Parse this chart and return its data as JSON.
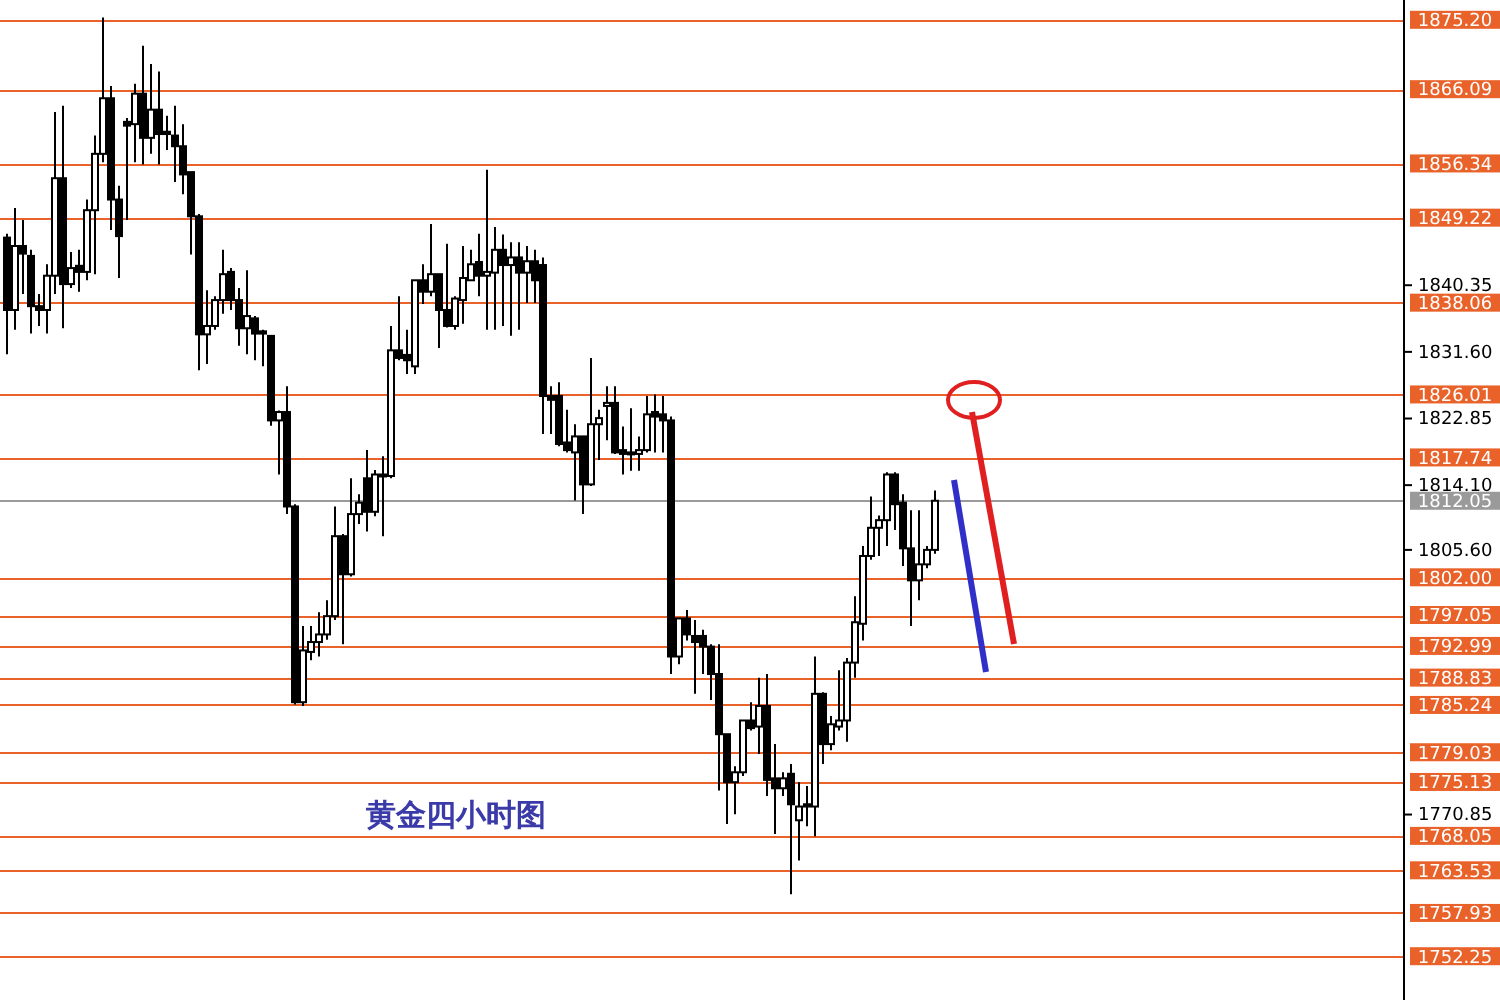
{
  "chart_data": {
    "type": "candlestick",
    "categories": [
      null,
      null,
      null,
      null,
      null,
      null,
      null,
      null,
      null,
      null,
      null,
      null,
      null,
      null,
      null,
      null,
      null,
      null,
      null,
      null,
      null,
      null,
      null,
      null,
      null,
      null,
      null,
      null,
      null,
      null,
      null,
      null,
      null,
      null,
      null,
      null,
      null,
      null,
      null,
      null,
      null,
      null,
      null,
      null,
      null,
      null,
      null,
      null,
      null,
      null,
      null,
      null,
      null,
      null,
      null,
      null,
      null,
      null,
      null,
      null,
      null,
      null,
      null,
      null,
      null,
      null,
      null,
      null,
      null,
      null,
      null,
      null,
      null,
      null,
      null,
      null,
      null,
      null,
      null,
      null,
      null,
      null,
      null,
      null,
      null,
      null,
      null,
      null,
      null,
      null,
      null,
      null,
      null,
      null,
      null,
      null,
      null,
      null,
      null,
      null,
      null,
      null,
      null,
      null,
      null,
      null,
      null,
      null,
      null,
      null,
      null,
      null,
      null,
      null,
      null,
      null,
      null,
      null,
      null,
      null,
      null,
      null,
      null,
      null,
      null,
      null,
      null,
      null,
      null,
      null,
      null,
      null,
      null,
      null,
      null,
      null,
      null,
      null,
      null,
      null,
      null,
      null,
      null,
      null,
      null,
      null,
      null,
      null,
      null,
      null,
      null,
      null,
      null,
      null,
      null,
      null,
      null,
      null,
      null,
      null,
      null,
      null,
      null,
      null,
      null,
      null,
      null,
      null,
      null,
      null,
      null,
      null,
      null,
      null,
      null
    ],
    "ohlc": [
      [
        1846.6,
        1847.1,
        1831.3,
        1837.1
      ],
      [
        1837.1,
        1850.5,
        1834.5,
        1845.5
      ],
      [
        1845.5,
        1848.9,
        1839.2,
        1844.5
      ],
      [
        1844.2,
        1845,
        1834,
        1837.6
      ],
      [
        1837.6,
        1839.2,
        1835,
        1837.1
      ],
      [
        1837.1,
        1843.1,
        1834,
        1841.6
      ],
      [
        1841.6,
        1863.1,
        1839.2,
        1854.4
      ],
      [
        1854.4,
        1863.9,
        1834.7,
        1840.5
      ],
      [
        1840.5,
        1844.7,
        1840,
        1842.6
      ],
      [
        1842.9,
        1845,
        1839.5,
        1842.1
      ],
      [
        1842.1,
        1851.6,
        1841,
        1850.2
      ],
      [
        1850.2,
        1860,
        1841.8,
        1857.6
      ],
      [
        1857.6,
        1875.5,
        1856.5,
        1864.9
      ],
      [
        1864.9,
        1866.5,
        1847.6,
        1851.6
      ],
      [
        1851.6,
        1853.4,
        1841.3,
        1846.8
      ],
      [
        1861.8,
        1862.3,
        1848.9,
        1861.3
      ],
      [
        1861.5,
        1866.8,
        1856.5,
        1865.5
      ],
      [
        1865.5,
        1871.8,
        1856.2,
        1859.7
      ],
      [
        1859.7,
        1869.4,
        1857.6,
        1863.4
      ],
      [
        1863.4,
        1868.4,
        1856.2,
        1860.2
      ],
      [
        1860.5,
        1862.6,
        1858.1,
        1860.2
      ],
      [
        1860,
        1863.9,
        1853.9,
        1858.6
      ],
      [
        1858.6,
        1861.5,
        1852.3,
        1854.9
      ],
      [
        1855.2,
        1855.2,
        1844.4,
        1849.4
      ],
      [
        1849.4,
        1849.7,
        1829.2,
        1833.9
      ],
      [
        1833.9,
        1839.7,
        1830,
        1835
      ],
      [
        1835,
        1838.9,
        1834.5,
        1838.4
      ],
      [
        1838.4,
        1845,
        1836.6,
        1841.8
      ],
      [
        1842.1,
        1842.6,
        1837.1,
        1838.4
      ],
      [
        1838.4,
        1840,
        1832.4,
        1834.7
      ],
      [
        1834.7,
        1842.3,
        1831.3,
        1836.3
      ],
      [
        1836,
        1836.3,
        1830.5,
        1834
      ],
      [
        1834.3,
        1834.5,
        1829.7,
        1834
      ],
      [
        1833.7,
        1833.7,
        1821.9,
        1822.6
      ],
      [
        1822.6,
        1823.9,
        1815.5,
        1823.7
      ],
      [
        1823.7,
        1827.1,
        1810.3,
        1811.3
      ],
      [
        1811.3,
        1811.6,
        1785.3,
        1785.6
      ],
      [
        1785.6,
        1795.6,
        1785.1,
        1792.4
      ],
      [
        1792.2,
        1795.6,
        1791.1,
        1793.5
      ],
      [
        1793.5,
        1797.4,
        1791.6,
        1794.5
      ],
      [
        1794.5,
        1799,
        1793.8,
        1796.9
      ],
      [
        1796.9,
        1811.3,
        1796.4,
        1807.4
      ],
      [
        1807.4,
        1807.7,
        1793.2,
        1802.4
      ],
      [
        1802.4,
        1815,
        1802.1,
        1810.3
      ],
      [
        1810.3,
        1812.9,
        1809,
        1811.8
      ],
      [
        1815,
        1818.7,
        1808,
        1810.6
      ],
      [
        1810.6,
        1816.1,
        1810,
        1815.5
      ],
      [
        1815.3,
        1817.9,
        1807.4,
        1815.5
      ],
      [
        1815.3,
        1835,
        1815,
        1831.8
      ],
      [
        1831.8,
        1838.9,
        1830.5,
        1830.8
      ],
      [
        1831.2,
        1834.5,
        1828.7,
        1830.5
      ],
      [
        1829.7,
        1841,
        1828.7,
        1841
      ],
      [
        1841,
        1843.1,
        1837.9,
        1839.5
      ],
      [
        1839.5,
        1848.4,
        1838.9,
        1841.8
      ],
      [
        1841.8,
        1841.8,
        1832.1,
        1837.1
      ],
      [
        1837.1,
        1845.8,
        1834.8,
        1835
      ],
      [
        1835,
        1838.9,
        1834.5,
        1838.6
      ],
      [
        1838.4,
        1845.5,
        1835.3,
        1841.3
      ],
      [
        1841,
        1845,
        1841,
        1843.1
      ],
      [
        1843.4,
        1847.1,
        1838.9,
        1841.6
      ],
      [
        1841.6,
        1855.5,
        1834.5,
        1842.1
      ],
      [
        1842,
        1848,
        1834.5,
        1845
      ],
      [
        1845,
        1847,
        1835,
        1843
      ],
      [
        1843,
        1846,
        1833.7,
        1844
      ],
      [
        1844,
        1846,
        1834.5,
        1842
      ],
      [
        1842,
        1845.5,
        1838,
        1843.5
      ],
      [
        1843.5,
        1845,
        1838,
        1841
      ],
      [
        1843,
        1844,
        1820.8,
        1825.8
      ],
      [
        1825.8,
        1827.1,
        1820.8,
        1825.3
      ],
      [
        1825.8,
        1827.6,
        1819.2,
        1819.5
      ],
      [
        1819.7,
        1824,
        1818.4,
        1818.7
      ],
      [
        1818.4,
        1822.1,
        1812.1,
        1820.5
      ],
      [
        1820.5,
        1820.5,
        1810.3,
        1814.2
      ],
      [
        1814.2,
        1830.8,
        1814,
        1822.1
      ],
      [
        1822.1,
        1824,
        1817.4,
        1822.9
      ],
      [
        1824.5,
        1827.1,
        1820,
        1824.9
      ],
      [
        1824.9,
        1827.1,
        1818.2,
        1818.4
      ],
      [
        1818.7,
        1821.8,
        1815.5,
        1818.2
      ],
      [
        1818.2,
        1824.2,
        1816,
        1818.4
      ],
      [
        1818.2,
        1820.5,
        1816,
        1818.7
      ],
      [
        1818.7,
        1825.8,
        1818.4,
        1823.4
      ],
      [
        1823.7,
        1826,
        1818.4,
        1823.1
      ],
      [
        1823.4,
        1825.8,
        1818.4,
        1822.6
      ],
      [
        1822.6,
        1823.1,
        1789.3,
        1791.6
      ],
      [
        1791.6,
        1796.6,
        1790.6,
        1796.6
      ],
      [
        1796.6,
        1797.7,
        1793.7,
        1794.5
      ],
      [
        1794.3,
        1796.4,
        1786.7,
        1793.5
      ],
      [
        1794.3,
        1795.1,
        1789.3,
        1792.9
      ],
      [
        1792.9,
        1793.2,
        1785.9,
        1789.3
      ],
      [
        1789.3,
        1793.2,
        1774,
        1781.4
      ],
      [
        1781.4,
        1781.4,
        1769.6,
        1775.1
      ],
      [
        1775.1,
        1777.2,
        1770.9,
        1776.4
      ],
      [
        1776.4,
        1783.2,
        1775.9,
        1783.2
      ],
      [
        1783.2,
        1785.6,
        1781.9,
        1782.2
      ],
      [
        1782.4,
        1788.8,
        1778.8,
        1785.1
      ],
      [
        1785.1,
        1789.3,
        1773.3,
        1775.4
      ],
      [
        1775.6,
        1780.1,
        1768.3,
        1774.3
      ],
      [
        1774.3,
        1776.4,
        1773.3,
        1775.6
      ],
      [
        1776.2,
        1777.5,
        1760.4,
        1772.2
      ],
      [
        1770.1,
        1775.1,
        1764.8,
        1771.9
      ],
      [
        1772.2,
        1774.6,
        1769.3,
        1771.9
      ],
      [
        1771.9,
        1791.6,
        1768,
        1786.7
      ],
      [
        1786.7,
        1786.9,
        1777.5,
        1780.1
      ],
      [
        1780.1,
        1783.8,
        1779.3,
        1782.7
      ],
      [
        1782.4,
        1789.8,
        1781.9,
        1783.2
      ],
      [
        1783.2,
        1791.4,
        1780.4,
        1790.8
      ],
      [
        1790.8,
        1799.5,
        1788.8,
        1796.1
      ],
      [
        1795.9,
        1806.1,
        1793.7,
        1804.8
      ],
      [
        1804.8,
        1812.6,
        1804.3,
        1808.5
      ],
      [
        1808.5,
        1810.1,
        1804.8,
        1809.5
      ],
      [
        1809.5,
        1815.8,
        1806.1,
        1815.5
      ],
      [
        1815.5,
        1815.8,
        1808.2,
        1811.6
      ],
      [
        1811.8,
        1812.9,
        1803.5,
        1805.8
      ],
      [
        1805.8,
        1810.8,
        1795.6,
        1801.6
      ],
      [
        1801.6,
        1810.8,
        1799,
        1803.7
      ],
      [
        1803.7,
        1806.1,
        1803.2,
        1805.6
      ],
      [
        1805.6,
        1813.4,
        1805.1,
        1812.05
      ],
      null,
      null,
      null,
      null,
      null,
      null,
      null,
      null,
      null,
      null,
      null,
      null,
      null,
      null,
      null,
      null,
      null,
      null,
      null,
      null,
      null,
      null,
      null,
      null,
      null,
      null,
      null,
      null,
      null,
      null,
      null,
      null,
      null,
      null,
      null,
      null,
      null,
      null,
      null,
      null,
      null,
      null,
      null,
      null,
      null,
      null,
      null,
      null,
      null,
      null,
      null,
      null,
      null,
      null,
      null,
      null,
      null,
      null
    ],
    "ylim": [
      1746.5,
      1877.8
    ],
    "yticks": [
      {
        "value": 1840.35,
        "label": "1840.35"
      },
      {
        "value": 1831.6,
        "label": "1831.60"
      },
      {
        "value": 1822.85,
        "label": "1822.85"
      },
      {
        "value": 1814.1,
        "label": "1814.10"
      },
      {
        "value": 1805.6,
        "label": "1805.60"
      },
      {
        "value": 1770.85,
        "label": "1770.85"
      }
    ],
    "tick_labels": "y",
    "ref_lines": [
      {
        "axis": "y",
        "value": 1875.2,
        "label": "1875.20",
        "color": "#e8622a"
      },
      {
        "axis": "y",
        "value": 1866.09,
        "label": "1866.09",
        "color": "#e8622a"
      },
      {
        "axis": "y",
        "value": 1856.34,
        "label": "1856.34",
        "color": "#e8622a"
      },
      {
        "axis": "y",
        "value": 1849.22,
        "label": "1849.22",
        "color": "#e8622a"
      },
      {
        "axis": "y",
        "value": 1838.06,
        "label": "1838.06",
        "color": "#e8622a"
      },
      {
        "axis": "y",
        "value": 1826.01,
        "label": "1826.01",
        "color": "#e8622a"
      },
      {
        "axis": "y",
        "value": 1817.74,
        "label": "1817.74",
        "color": "#e8622a"
      },
      {
        "axis": "y",
        "value": 1812.05,
        "label": "1812.05",
        "color": "#9a9a9a"
      },
      {
        "axis": "y",
        "value": 1802.0,
        "label": "1802.00",
        "color": "#e8622a"
      },
      {
        "axis": "y",
        "value": 1797.05,
        "label": "1797.05",
        "color": "#e8622a"
      },
      {
        "axis": "y",
        "value": 1792.99,
        "label": "1792.99",
        "color": "#e8622a"
      },
      {
        "axis": "y",
        "value": 1788.83,
        "label": "1788.83",
        "color": "#e8622a"
      },
      {
        "axis": "y",
        "value": 1785.24,
        "label": "1785.24",
        "color": "#e8622a"
      },
      {
        "axis": "y",
        "value": 1779.03,
        "label": "1779.03",
        "color": "#e8622a"
      },
      {
        "axis": "y",
        "value": 1775.13,
        "label": "1775.13",
        "color": "#e8622a"
      },
      {
        "axis": "y",
        "value": 1768.05,
        "label": "1768.05",
        "color": "#e8622a"
      },
      {
        "axis": "y",
        "value": 1763.53,
        "label": "1763.53",
        "color": "#e8622a"
      },
      {
        "axis": "y",
        "value": 1757.93,
        "label": "1757.93",
        "color": "#e8622a"
      },
      {
        "axis": "y",
        "value": 1752.25,
        "label": "1752.25",
        "color": "#e8622a"
      }
    ],
    "annotations": [
      "黄金四小时图"
    ]
  }
}
